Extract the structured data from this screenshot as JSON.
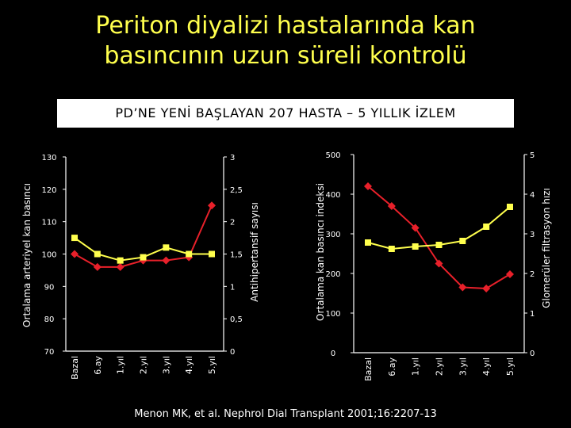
{
  "title_line1": "Periton diyalizi hastalarında kan",
  "title_line2": "basıncının uzun süreli kontrolü",
  "subtitle": "PD’NE YENİ BAŞLAYAN 207 HASTA – 5 YILLIK İZLEM",
  "citation": "Menon MK, et al. Nephrol Dial Transplant 2001;16:2207-13",
  "colors": {
    "red_series": "#e8202a",
    "yellow_series": "#ffff4d",
    "title": "#ffff4d"
  },
  "chart_data": [
    {
      "type": "line",
      "categories": [
        "Bazal",
        "6.ay",
        "1.yıl",
        "2.yıl",
        "3.yıl",
        "4.yıl",
        "5.yıl"
      ],
      "ylabel_left": "Ortalama arteriyel kan basıncı",
      "ylabel_right": "Antihipertansif sayısı",
      "y_left": {
        "ticks": [
          "130",
          "120",
          "110",
          "100",
          "90",
          "80",
          "70"
        ],
        "ylim": [
          70,
          130
        ]
      },
      "y_right": {
        "ticks": [
          "3",
          "2,5",
          "2",
          "1,5",
          "1",
          "0,5",
          "0"
        ],
        "ylim": [
          0,
          3
        ]
      },
      "series": [
        {
          "axis": "left",
          "color": "#e8202a",
          "marker": "diamond",
          "values": [
            100,
            96,
            96,
            98,
            98,
            99,
            115
          ]
        },
        {
          "axis": "right",
          "color": "#ffff4d",
          "marker": "square",
          "values": [
            1.75,
            1.5,
            1.4,
            1.45,
            1.6,
            1.5,
            1.5
          ]
        }
      ],
      "grid": false
    },
    {
      "type": "line",
      "categories": [
        "Bazal",
        "6.ay",
        "1.yıl",
        "2.yıl",
        "3.yıl",
        "4.yıl",
        "5.yıl"
      ],
      "ylabel_left": "Ortalama kan basıncı indeksi",
      "ylabel_right": "Glomerüler filtrasyon hızı",
      "y_left": {
        "ticks": [
          "500",
          "400",
          "300",
          "200",
          "100",
          "0"
        ],
        "ylim": [
          0,
          500
        ]
      },
      "y_right": {
        "ticks": [
          "5",
          "4",
          "3",
          "2",
          "1",
          "0"
        ],
        "ylim": [
          0,
          5
        ]
      },
      "series": [
        {
          "axis": "left",
          "color": "#e8202a",
          "marker": "diamond",
          "values": [
            420,
            370,
            315,
            225,
            165,
            162,
            198
          ]
        },
        {
          "axis": "left",
          "color": "#ffff4d",
          "marker": "square",
          "values": [
            278,
            262,
            268,
            272,
            282,
            318,
            368
          ]
        }
      ],
      "grid": false
    }
  ]
}
